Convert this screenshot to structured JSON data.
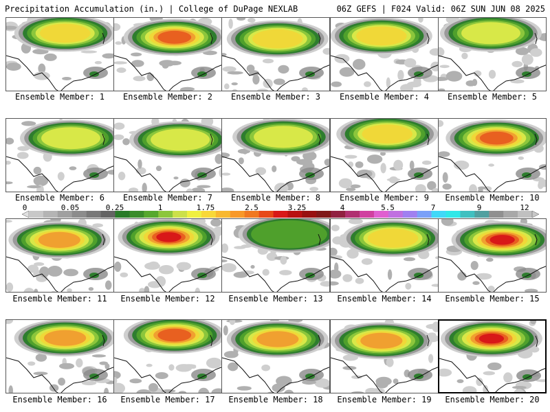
{
  "header": {
    "title_left": "Precipitation Accumulation (in.) | College of DuPage NEXLAB",
    "title_right": "06Z GEFS | F024 Valid: 06Z SUN JUN 08 2025"
  },
  "panels": [
    {
      "label": "Ensemble Member: 1",
      "peak": 1.75
    },
    {
      "label": "Ensemble Member: 2",
      "peak": 3.0
    },
    {
      "label": "Ensemble Member: 3",
      "peak": 1.75
    },
    {
      "label": "Ensemble Member: 4",
      "peak": 1.75
    },
    {
      "label": "Ensemble Member: 5",
      "peak": 1.0
    },
    {
      "label": "Ensemble Member: 6",
      "peak": 1.0
    },
    {
      "label": "Ensemble Member: 7",
      "peak": 1.0
    },
    {
      "label": "Ensemble Member: 8",
      "peak": 1.0
    },
    {
      "label": "Ensemble Member: 9",
      "peak": 1.75
    },
    {
      "label": "Ensemble Member: 10",
      "peak": 3.0
    },
    {
      "label": "Ensemble Member: 11",
      "peak": 2.0
    },
    {
      "label": "Ensemble Member: 12",
      "peak": 3.25
    },
    {
      "label": "Ensemble Member: 13",
      "peak": 0.5
    },
    {
      "label": "Ensemble Member: 14",
      "peak": 1.75
    },
    {
      "label": "Ensemble Member: 15",
      "peak": 3.5
    },
    {
      "label": "Ensemble Member: 16",
      "peak": 2.5
    },
    {
      "label": "Ensemble Member: 17",
      "peak": 3.0
    },
    {
      "label": "Ensemble Member: 18",
      "peak": 2.5
    },
    {
      "label": "Ensemble Member: 19",
      "peak": 2.5
    },
    {
      "label": "Ensemble Member: 20",
      "peak": 3.25
    }
  ],
  "selected_panel": 20,
  "colorbar": {
    "labels": [
      "0",
      "0.05",
      "0.25",
      "1",
      "1.75",
      "2.5",
      "3.25",
      "4",
      "5.5",
      "7",
      "9",
      "12"
    ],
    "colors": [
      "#c8c8c8",
      "#b4b4b4",
      "#a0a0a0",
      "#8c8c8c",
      "#787878",
      "#646464",
      "#287a28",
      "#3a8c2a",
      "#56a82e",
      "#8cc63c",
      "#cce04a",
      "#f0f040",
      "#f8d838",
      "#f8b830",
      "#f89828",
      "#f07820",
      "#e84818",
      "#d81818",
      "#b81010",
      "#981010",
      "#801818",
      "#902040",
      "#b03070",
      "#d040a0",
      "#e060d0",
      "#c070e0",
      "#a080f0",
      "#7aa0f8",
      "#40d8f8",
      "#30e8e8",
      "#40c0c0",
      "#50a0a0",
      "#909090",
      "#a8a8a8",
      "#c0c0c0"
    ]
  }
}
